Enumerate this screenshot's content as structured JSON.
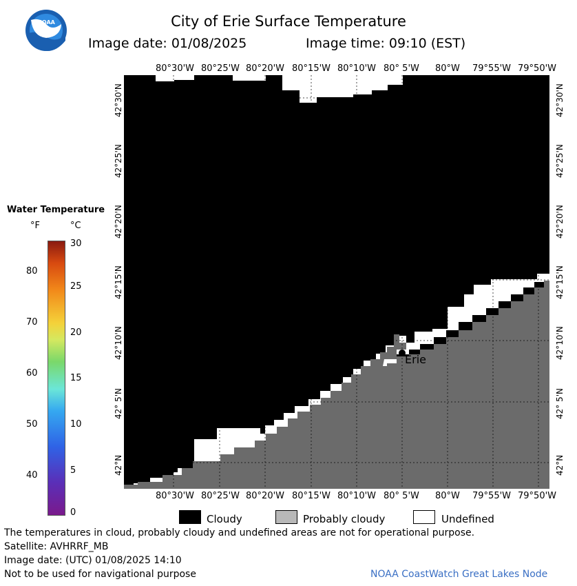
{
  "header": {
    "title": "City of Erie Surface Temperature",
    "image_date": "Image date: 01/08/2025",
    "image_time": "Image time: 09:10 (EST)"
  },
  "logo": {
    "text": "NOAA"
  },
  "colorbar": {
    "title": "Water Temperature",
    "unit_f": "°F",
    "unit_c": "°C",
    "f_ticks": [
      "80",
      "70",
      "60",
      "50",
      "40"
    ],
    "c_ticks": [
      "30",
      "25",
      "20",
      "15",
      "10",
      "5",
      "0"
    ]
  },
  "map": {
    "lon_labels": [
      "80°30'W",
      "80°25'W",
      "80°20'W",
      "80°15'W",
      "80°10'W",
      "80° 5'W",
      "80°W",
      "79°55'W",
      "79°50'W"
    ],
    "lat_labels": [
      "42°30'N",
      "42°25'N",
      "42°20'N",
      "42°15'N",
      "42°10'N",
      "42° 5'N",
      "42°N"
    ],
    "city_label": "Erie",
    "colors": {
      "cloudy": "#000000",
      "probably_cloudy": "#6b6b6b",
      "undefined": "#ffffff"
    }
  },
  "key": {
    "cloudy": "Cloudy",
    "probably_cloudy": "Probably cloudy",
    "undefined": "Undefined"
  },
  "footer": {
    "disclaimer": "The temperatures in cloud, probably cloudy and undefined areas are not for operational purpose.",
    "satellite": "Satellite: AVHRRF_MB",
    "utc_date": "Image date: (UTC) 01/08/2025  14:10",
    "navigation": "Not to be used for navigational purpose",
    "credit": "NOAA CoastWatch Great Lakes Node"
  }
}
